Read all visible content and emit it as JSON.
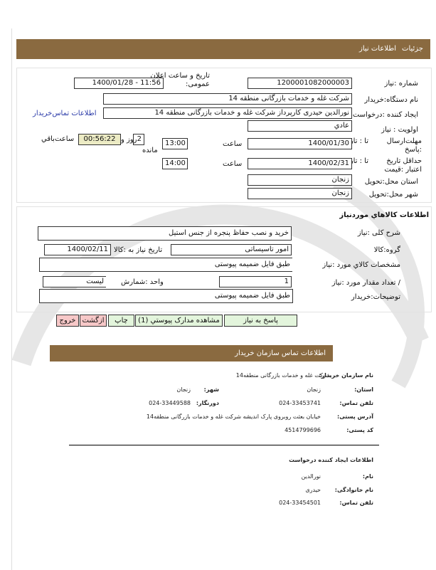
{
  "colors": {
    "header_bar": "#8a6a40",
    "button_green": "#e3f5dc",
    "button_pink": "#f7c8c8",
    "timer_bg": "#ecebc4",
    "link": "#2a3aa8"
  },
  "header": {
    "tab_details": "جزئیات",
    "tab_need_info": "اطلاعات نیاز"
  },
  "need": {
    "number_label": "شماره :نیاز",
    "number": "1200001082000003",
    "announce_label": "تاریخ و ساعت اعلان عمومی:",
    "announce": "1400/01/28 - 11:56",
    "buyer_org_label": "نام دستگاه:خریدار",
    "buyer_org": "شرکت غله و خدمات بازرگانی منطقه 14",
    "creator_label": "ایجاد کننده :درخواست",
    "creator": "نورالدین حیدری کارپرداز شرکت غله و خدمات بازرگانی منطقه 14",
    "buyer_contact_link": "اطلاعات تماس‌خریدار",
    "priority_label": "اولویت : نیاز",
    "priority": "عادي",
    "deadline_label": "مهلت‌ارسال :پاسخ",
    "to_date_label": "تا : تاریخ",
    "deadline_date": "1400/01/30",
    "time_label": "ساعت",
    "deadline_time": "13:00",
    "remaining_days": "2",
    "days_and_label": "روز و",
    "remaining_time": "00:56:22",
    "remaining_label": "ساعت‌باقي",
    "remaining_label2": "مانده",
    "validity_label": "حداقل تاریخ اعتبار :قیمت",
    "validity_date": "1400/02/31",
    "validity_time": "14:00",
    "province_label": "استان محل:تحویل",
    "province": "زنجان",
    "city_label": "شهر محل:تحویل",
    "city": "زنجان"
  },
  "goods": {
    "title": "اطلاعات کالاهاي موردنیاز",
    "desc_label": "شرح کلی :نیاز",
    "desc": "خرید و نصب حفاظ پنجره از جنس استیل",
    "group_label": "گروه:کالا",
    "group": "امور تاسیساتی",
    "need_date_label": "تاریخ نیاز به :کالا",
    "need_date": "1400/02/11",
    "spec_label": "مشخصات کالاي مورد :نیاز",
    "spec": "طبق فایل ضمیمه پیوستی",
    "qty_label": "/ تعداد مقدار مورد :نیاز",
    "qty": "1",
    "unit_label": "واحد :شمارش",
    "unit": "لیست",
    "buyer_notes_label": "توضیحات:خریدار",
    "buyer_notes": "طبق فایل ضمیمه پیوستی"
  },
  "buttons": {
    "reply": "پاسخ به نیاز",
    "attachments": "مشاهده مدارک پیوستي (1)",
    "print": "چاپ",
    "back": "ازگشت",
    "exit": "خروج"
  },
  "contact": {
    "title": "اطلاعات تماس سازمان خریدار",
    "org_label": "نام سازمان خریدار:",
    "org": "شرکت غله و خدمات بازرگانی منطقه14",
    "province_label": "استان:",
    "province": "زنجان",
    "city_label": "شهر:",
    "city": "زنجان",
    "phone_label": "تلفن تماس:",
    "phone": "024-33453741",
    "fax_label": "دورنگار:",
    "fax": "024-33449588",
    "address_label": "آدرس پستی:",
    "address": "خیابان بعثت روبروی پارک اندیشه شرکت غله و خدمات بازرگانی منطقه14",
    "postal_label": "کد پستی:",
    "postal": "4514799696"
  },
  "requester": {
    "title": "اطلاعات ایجاد کننده درخواست",
    "name_label": "نام:",
    "name": "نورالدین",
    "family_label": "نام خانوادگی:",
    "family": "حیدری",
    "phone_label": "تلفن تماس:",
    "phone": "024-33454501"
  }
}
